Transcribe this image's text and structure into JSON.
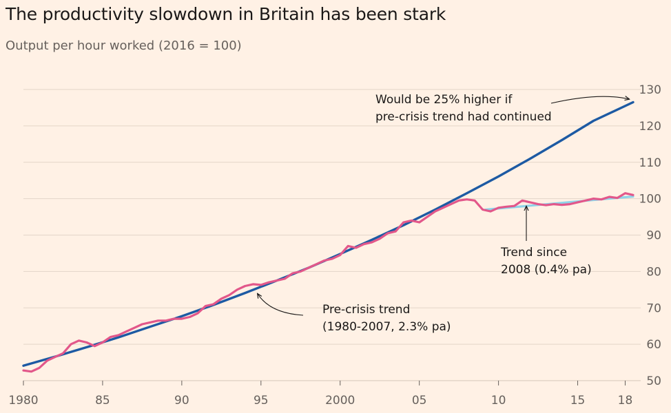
{
  "title": "The productivity slowdown in Britain has been stark",
  "subtitle": "Output per hour worked (2016 = 100)",
  "colors": {
    "background": "#fff1e5",
    "actual": "#e2578a",
    "pre_crisis_trend": "#1d5aa3",
    "post_2008_trend": "#8fd3e8",
    "grid": "#e3d5c8"
  },
  "annotations": {
    "higher_line1": "Would be 25% higher if",
    "higher_line2": "pre-crisis trend had continued",
    "since_line1": "Trend since",
    "since_line2": "2008 (0.4% pa)",
    "pre_line1": "Pre-crisis trend",
    "pre_line2": "(1980-2007, 2.3% pa)"
  },
  "chart_data": {
    "type": "line",
    "title": "The productivity slowdown in Britain has been stark",
    "subtitle": "Output per hour worked (2016 = 100)",
    "xlim": [
      1980,
      2018.5
    ],
    "ylim": [
      50,
      130
    ],
    "y_ticks": [
      50,
      60,
      70,
      80,
      90,
      100,
      110,
      120,
      130
    ],
    "y_tick_labels": [
      "50",
      "60",
      "70",
      "80",
      "90",
      "100",
      "110",
      "120",
      "130"
    ],
    "y_axis_side": "right",
    "x_ticks": [
      1980,
      1985,
      1990,
      1995,
      2000,
      2005,
      2010,
      2015,
      2018
    ],
    "x_tick_labels": [
      "1980",
      "85",
      "90",
      "95",
      "2000",
      "05",
      "10",
      "15",
      "18"
    ],
    "grid": true,
    "series": [
      {
        "name": "Pre-crisis trend",
        "color": "#1d5aa3",
        "x": [
          1980,
          1982,
          1984,
          1986,
          1988,
          1990,
          1992,
          1994,
          1996,
          1998,
          2000,
          2002,
          2004,
          2006,
          2008,
          2010,
          2012,
          2014,
          2016,
          2018.5
        ],
        "y": [
          54.1,
          56.6,
          59.2,
          61.9,
          64.8,
          67.7,
          70.8,
          74.1,
          77.5,
          81.0,
          84.8,
          88.7,
          92.7,
          97.0,
          101.5,
          106.1,
          111.0,
          116.1,
          121.4,
          126.5
        ]
      },
      {
        "name": "Trend since 2008 (0.4% pa)",
        "color": "#8fd3e8",
        "x": [
          2009.2,
          2018.5
        ],
        "y": [
          97.0,
          100.6
        ]
      },
      {
        "name": "Output per hour worked",
        "color": "#e2578a",
        "x": [
          1980,
          1980.5,
          1981,
          1981.5,
          1982,
          1982.5,
          1983,
          1983.5,
          1984,
          1984.5,
          1985,
          1985.5,
          1986,
          1986.5,
          1987,
          1987.5,
          1988,
          1988.5,
          1989,
          1989.5,
          1990,
          1990.5,
          1991,
          1991.5,
          1992,
          1992.5,
          1993,
          1993.5,
          1994,
          1994.5,
          1995,
          1995.5,
          1996,
          1996.5,
          1997,
          1997.5,
          1998,
          1998.5,
          1999,
          1999.5,
          2000,
          2000.5,
          2001,
          2001.5,
          2002,
          2002.5,
          2003,
          2003.5,
          2004,
          2004.5,
          2005,
          2005.5,
          2006,
          2006.5,
          2007,
          2007.5,
          2008,
          2008.5,
          2009,
          2009.5,
          2010,
          2010.5,
          2011,
          2011.5,
          2012,
          2012.5,
          2013,
          2013.5,
          2014,
          2014.5,
          2015,
          2015.5,
          2016,
          2016.5,
          2017,
          2017.5,
          2018,
          2018.5
        ],
        "y": [
          52.8,
          52.5,
          53.5,
          55.5,
          56.5,
          57.5,
          60.0,
          61.0,
          60.5,
          59.5,
          60.5,
          62.0,
          62.5,
          63.5,
          64.5,
          65.5,
          66.0,
          66.5,
          66.5,
          67.0,
          67.0,
          67.5,
          68.5,
          70.5,
          71.0,
          72.5,
          73.5,
          75.0,
          76.0,
          76.5,
          76.3,
          77.0,
          77.5,
          78.0,
          79.5,
          80.0,
          81.0,
          82.0,
          83.0,
          83.5,
          84.5,
          87.0,
          86.5,
          87.5,
          88.0,
          89.0,
          90.5,
          91.0,
          93.5,
          94.0,
          93.5,
          95.0,
          96.5,
          97.5,
          98.5,
          99.5,
          99.8,
          99.5,
          97.0,
          96.5,
          97.5,
          97.8,
          98.0,
          99.5,
          99.0,
          98.5,
          98.2,
          98.5,
          98.3,
          98.5,
          99.0,
          99.5,
          100.0,
          99.8,
          100.5,
          100.2,
          101.5,
          101.0
        ]
      }
    ]
  }
}
